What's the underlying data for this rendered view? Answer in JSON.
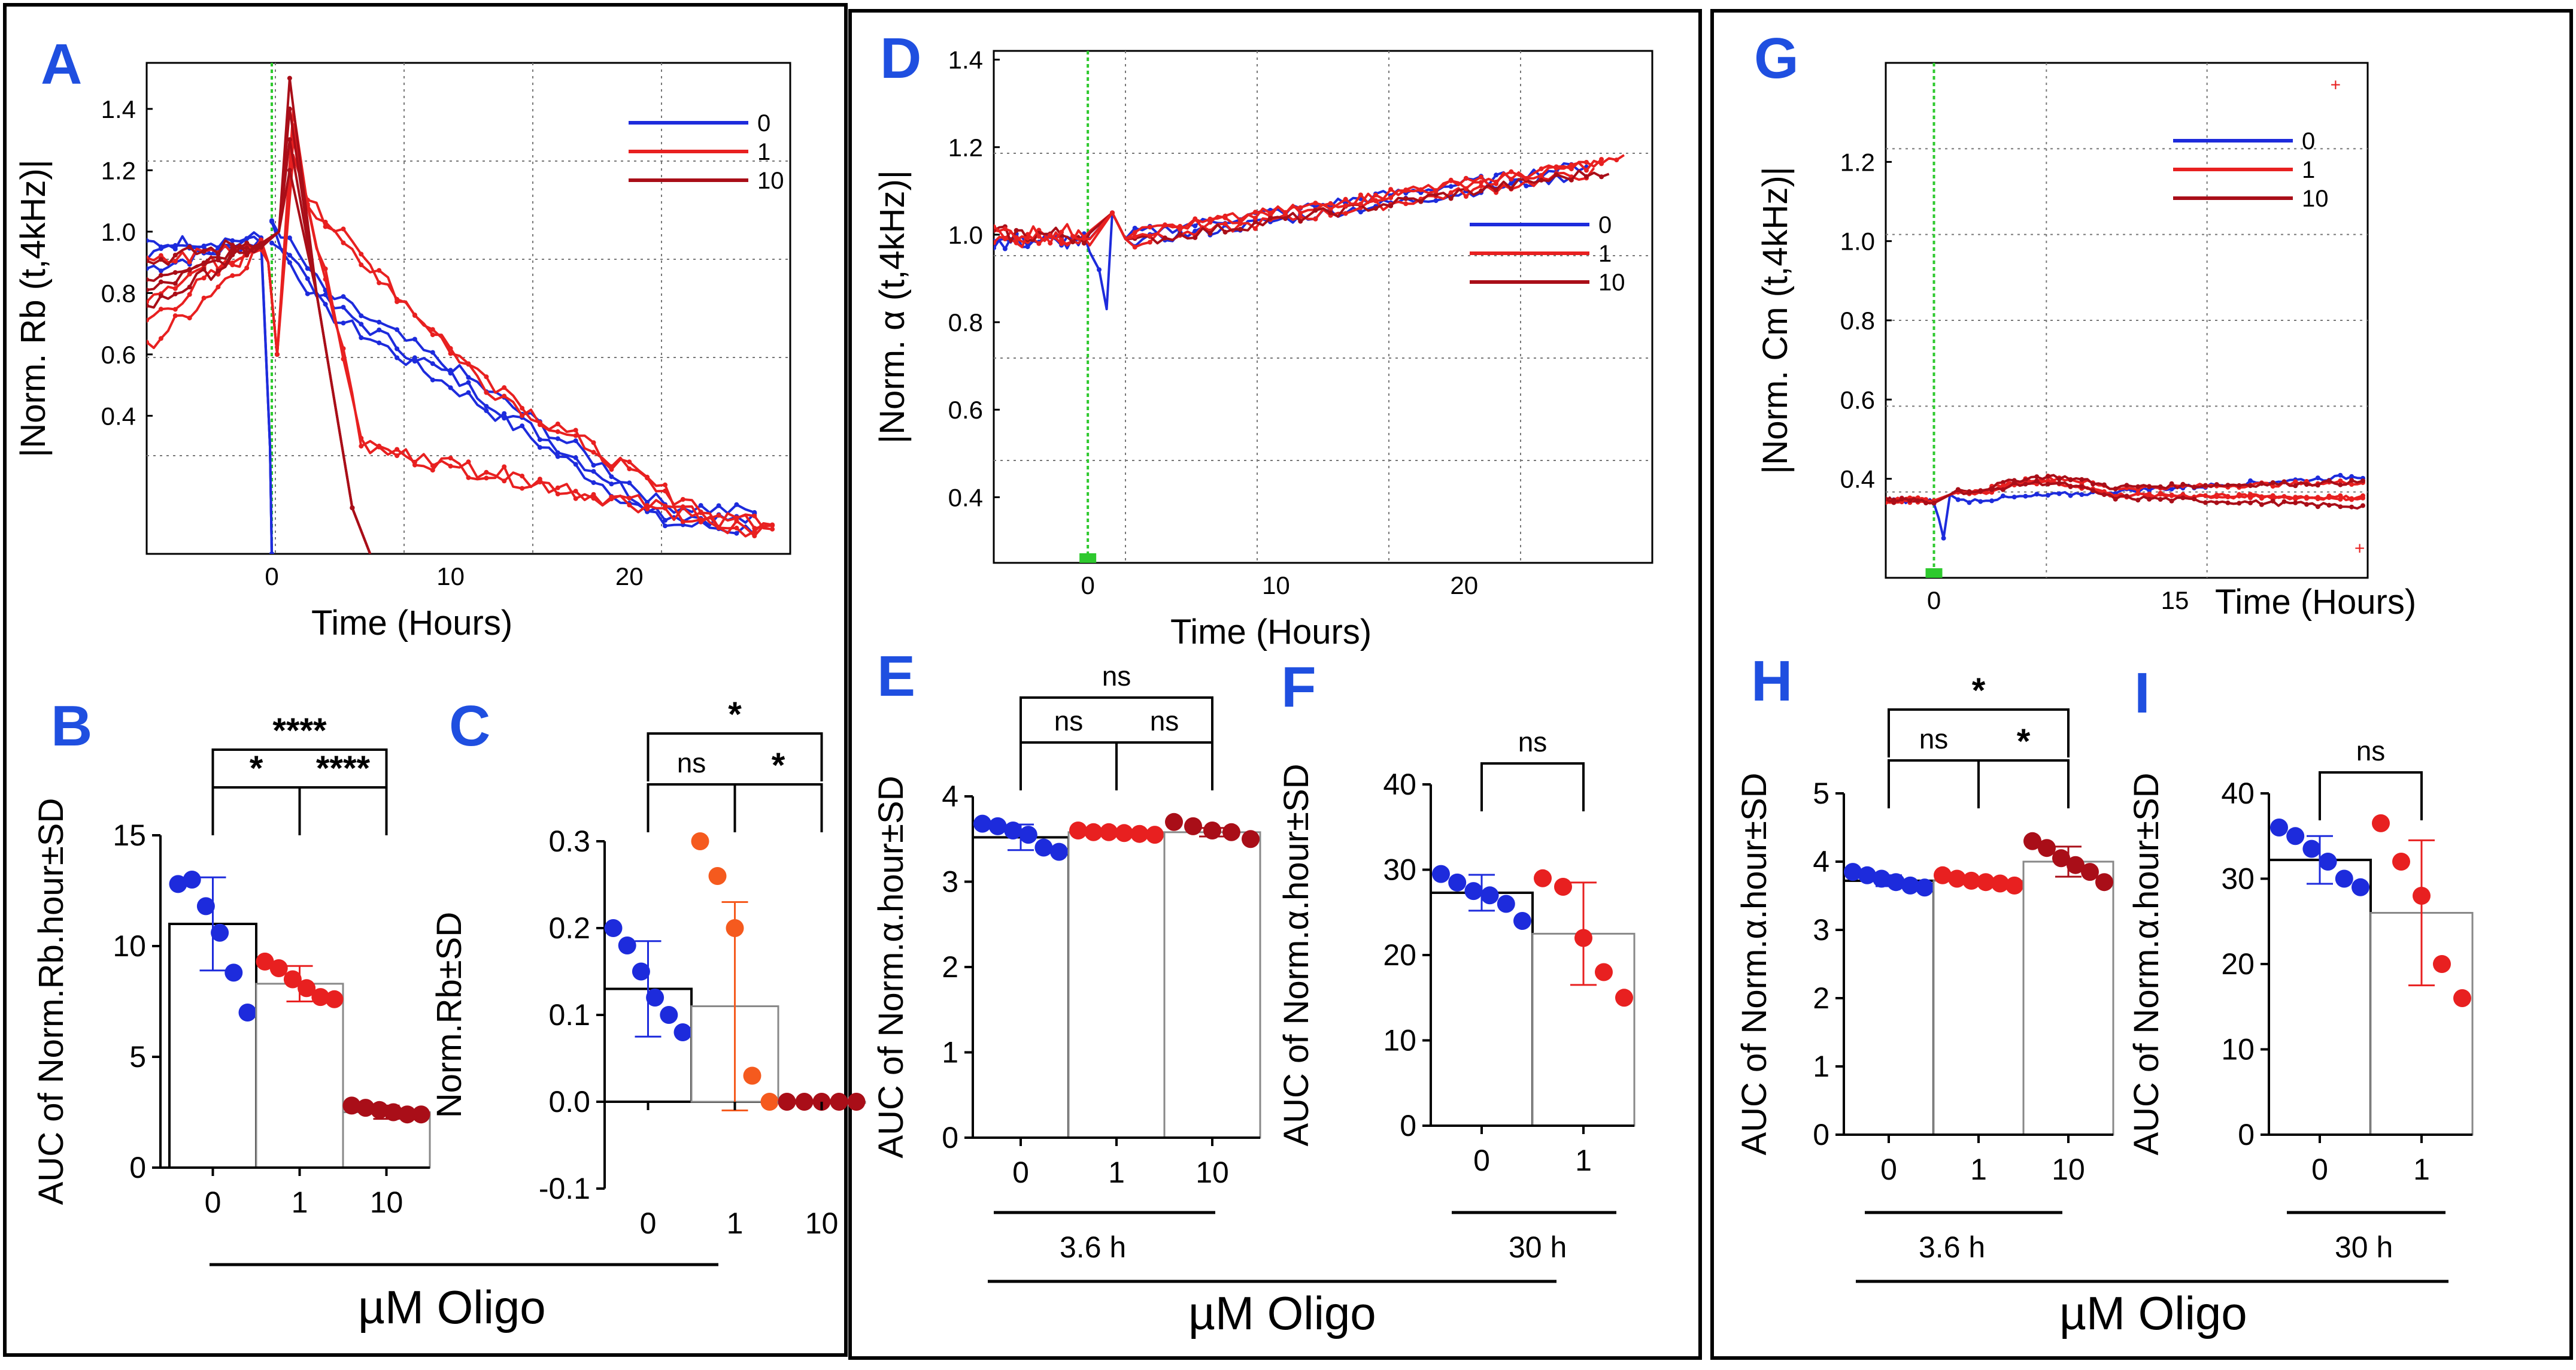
{
  "panel_labels": [
    "A",
    "B",
    "C",
    "D",
    "E",
    "F",
    "G",
    "H",
    "I"
  ],
  "group_labels": {
    "oligo": "µM Oligo",
    "h36": "3.6 h",
    "h30": "30 h"
  },
  "colors": {
    "c0": "#1d2bdc",
    "c1": "#e82020",
    "c10": "#a90e18",
    "cf1": "#f55a1e"
  },
  "chart_data": [
    {
      "id": "A",
      "type": "line",
      "ylabel": "|Norm. Rb (t,4kHz)|",
      "xlabel": "Time (Hours)",
      "xlim": [
        -7,
        29
      ],
      "ylim": [
        -0.05,
        1.55
      ],
      "yticks": [
        "0.4",
        "0.6",
        "0.8",
        "1.0",
        "1.2",
        "1.4"
      ],
      "xticks": [
        "0",
        "10",
        "20"
      ],
      "legend": [
        "0",
        "1",
        "10"
      ]
    },
    {
      "id": "B",
      "type": "bar",
      "ylabel": "AUC of Norm.Rb.hour±SD",
      "ylim": [
        0,
        15
      ],
      "yticks": [
        "0",
        "5",
        "10",
        "15"
      ],
      "categories": [
        "0",
        "1",
        "10"
      ],
      "means": [
        11.0,
        8.3,
        2.5
      ],
      "sd": [
        2.1,
        0.8,
        0.3
      ],
      "points": [
        [
          12.8,
          13.0,
          11.8,
          10.6,
          8.8,
          7.0
        ],
        [
          9.3,
          9.0,
          8.5,
          8.1,
          7.7,
          7.6
        ],
        [
          2.8,
          2.7,
          2.6,
          2.5,
          2.4,
          2.4
        ]
      ],
      "sig": [
        "****",
        "*",
        "****"
      ]
    },
    {
      "id": "C",
      "type": "bar",
      "ylabel": "Norm.Rb±SD",
      "ylim": [
        -0.1,
        0.3
      ],
      "yticks": [
        "-0.1",
        "0.0",
        "0.1",
        "0.2",
        "0.3"
      ],
      "categories": [
        "0",
        "1",
        "10"
      ],
      "means": [
        0.13,
        0.11,
        0.0
      ],
      "sd": [
        0.055,
        0.12,
        0.0
      ],
      "points": [
        [
          0.2,
          0.18,
          0.15,
          0.12,
          0.1,
          0.08
        ],
        [
          0.3,
          0.26,
          0.2,
          0.03,
          0.0
        ],
        [
          0.0,
          0.0,
          0.0,
          0.0,
          0.0
        ]
      ],
      "sig": [
        "*",
        "ns",
        "*"
      ]
    },
    {
      "id": "D",
      "type": "line",
      "ylabel": "|Norm. α (t,4kHz)|",
      "xlabel": "Time (Hours)",
      "xlim": [
        -5,
        30
      ],
      "ylim": [
        0.25,
        1.42
      ],
      "yticks": [
        "0.4",
        "0.6",
        "0.8",
        "1.0",
        "1.2",
        "1.4"
      ],
      "xticks": [
        "0",
        "10",
        "20"
      ],
      "legend": [
        "0",
        "1",
        "10"
      ]
    },
    {
      "id": "E",
      "type": "bar",
      "ylabel": "AUC of Norm.α.hour±SD",
      "ylim": [
        0,
        4
      ],
      "yticks": [
        "0",
        "1",
        "2",
        "3",
        "4"
      ],
      "categories": [
        "0",
        "1",
        "10"
      ],
      "means": [
        3.52,
        3.58,
        3.58
      ],
      "sd": [
        0.15,
        0.03,
        0.05
      ],
      "points": [
        [
          3.68,
          3.65,
          3.6,
          3.55,
          3.4,
          3.35
        ],
        [
          3.6,
          3.58,
          3.58,
          3.57,
          3.56,
          3.55
        ],
        [
          3.7,
          3.65,
          3.6,
          3.58,
          3.5
        ]
      ],
      "sig": [
        "ns",
        "ns",
        "ns"
      ]
    },
    {
      "id": "F",
      "type": "bar",
      "ylabel": "AUC of Norm.α.hour±SD",
      "ylim": [
        0,
        40
      ],
      "yticks": [
        "0",
        "10",
        "20",
        "30",
        "40"
      ],
      "categories": [
        "0",
        "1"
      ],
      "means": [
        27.3,
        22.5
      ],
      "sd": [
        2.1,
        6.0
      ],
      "points": [
        [
          29.5,
          28.5,
          27.5,
          27.0,
          26.0,
          24.0
        ],
        [
          29.0,
          28.0,
          22.0,
          18.0,
          15.0
        ]
      ],
      "sig": [
        "ns"
      ]
    },
    {
      "id": "G",
      "type": "line",
      "ylabel": "|Norm. Cm (t,4kHz)|",
      "xlabel": "Time (Hours)",
      "xlim": [
        -3,
        27
      ],
      "ylim": [
        0.15,
        1.45
      ],
      "yticks": [
        "0.4",
        "0.6",
        "0.8",
        "1.0",
        "1.2"
      ],
      "xticks": [
        "0",
        "15"
      ],
      "legend": [
        "0",
        "1",
        "10"
      ]
    },
    {
      "id": "H",
      "type": "bar",
      "ylabel": "AUC of Norm.α.hour±SD",
      "ylim": [
        0,
        5
      ],
      "yticks": [
        "0",
        "1",
        "2",
        "3",
        "4",
        "5"
      ],
      "categories": [
        "0",
        "1",
        "10"
      ],
      "means": [
        3.72,
        3.72,
        4.0
      ],
      "sd": [
        0.08,
        0.05,
        0.22
      ],
      "points": [
        [
          3.85,
          3.8,
          3.75,
          3.7,
          3.65,
          3.62
        ],
        [
          3.8,
          3.75,
          3.72,
          3.7,
          3.68,
          3.65
        ],
        [
          4.3,
          4.2,
          4.05,
          3.95,
          3.85,
          3.7
        ]
      ],
      "sig": [
        "*",
        "ns",
        "*"
      ]
    },
    {
      "id": "I",
      "type": "bar",
      "ylabel": "AUC of Norm.α.hour±SD",
      "ylim": [
        0,
        40
      ],
      "yticks": [
        "0",
        "10",
        "20",
        "30",
        "40"
      ],
      "categories": [
        "0",
        "1"
      ],
      "means": [
        32.2,
        26.0
      ],
      "sd": [
        2.8,
        8.5
      ],
      "points": [
        [
          36.0,
          35.0,
          33.5,
          32.0,
          30.0,
          29.0
        ],
        [
          36.5,
          32.0,
          28.0,
          20.0,
          16.0
        ]
      ],
      "sig": [
        "ns"
      ]
    }
  ]
}
